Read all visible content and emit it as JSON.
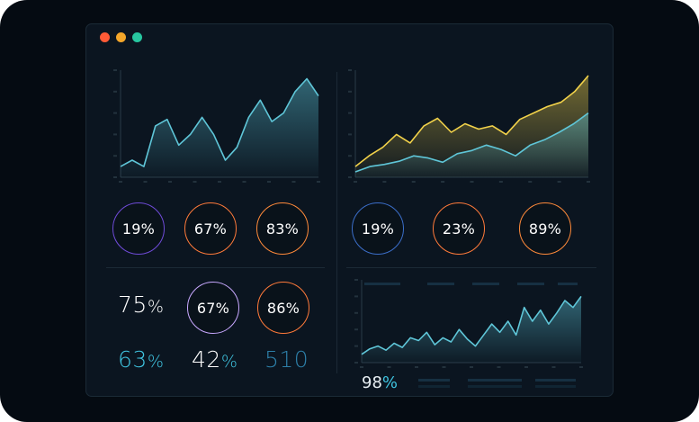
{
  "window": {
    "controls": [
      "close",
      "minimize",
      "maximize"
    ]
  },
  "colors": {
    "close": "#ff5a36",
    "minimize": "#f4a62a",
    "maximize": "#27c7a0",
    "line_teal": "#5fc6d8",
    "line_yellow": "#f2d24a",
    "ring_orange": "#ff7a3a",
    "ring_purple": "#6f4bd8",
    "ring_blue": "#3b6ec9"
  },
  "charts": [
    {
      "type": "area",
      "series": [
        {
          "values": [
            5,
            8,
            5,
            24,
            27,
            15,
            20,
            28,
            20,
            8,
            14,
            28,
            36,
            26,
            30,
            40,
            46,
            38
          ]
        }
      ],
      "ylim": [
        0,
        50
      ]
    },
    {
      "type": "line",
      "series": [
        {
          "values": [
            10,
            20,
            28,
            40,
            32,
            48,
            55,
            42,
            50,
            45,
            48,
            40,
            54,
            60,
            66,
            70,
            80,
            95
          ]
        },
        {
          "values": [
            5,
            10,
            12,
            15,
            20,
            18,
            14,
            22,
            25,
            30,
            26,
            20,
            30,
            35,
            42,
            50,
            60
          ]
        }
      ],
      "ylim": [
        0,
        100
      ]
    },
    {
      "type": "area",
      "series": [
        {
          "values": [
            6,
            10,
            12,
            9,
            14,
            11,
            18,
            16,
            22,
            13,
            18,
            15,
            24,
            17,
            12,
            20,
            28,
            22,
            30,
            20,
            40,
            30,
            38,
            28,
            36,
            45,
            40,
            48
          ]
        }
      ],
      "ylim": [
        0,
        60
      ]
    }
  ],
  "rings": [
    {
      "label": "19%",
      "color": "#6f4bd8"
    },
    {
      "label": "67%",
      "color": "#ff7a3a"
    },
    {
      "label": "83%",
      "color": "#ff8a3a"
    },
    {
      "label": "19%",
      "color": "#3b6ec9"
    },
    {
      "label": "23%",
      "color": "#ff7a3a"
    },
    {
      "label": "89%",
      "color": "#ff8a3a"
    },
    {
      "label": "67%",
      "color": "#c8a8ff"
    },
    {
      "label": "86%",
      "color": "#ff7a3a"
    }
  ],
  "stats": {
    "a": {
      "num": "75",
      "pct": "%"
    },
    "b": {
      "num": "63",
      "pct": "%"
    },
    "c": {
      "num": "42",
      "pct": "%"
    },
    "d": {
      "num": "510",
      "pct": ""
    },
    "footer": {
      "num": "98",
      "pct": "%"
    }
  }
}
